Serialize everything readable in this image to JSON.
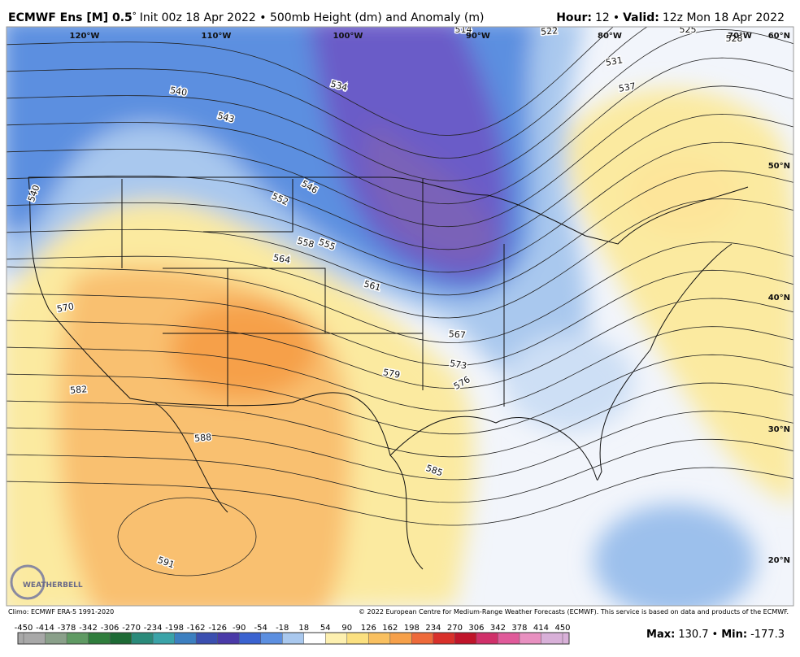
{
  "header": {
    "title": "ECMWF Ens [M] 0.5",
    "degree": "°",
    "subtitle": "Init 00z 18 Apr 2022 • 500mb Height (dm) and Anomaly (m)",
    "hour_label": "Hour:",
    "hour": "12",
    "sep": "•",
    "valid_label": "Valid:",
    "valid": "12z Mon 18 Apr 2022"
  },
  "map": {
    "lon_labels": [
      "120°W",
      "110°W",
      "100°W",
      "90°W",
      "80°W",
      "70°W"
    ],
    "lat_labels": [
      "60°N",
      "50°N",
      "40°N",
      "30°N",
      "20°N"
    ],
    "contour_labels": [
      "514",
      "522",
      "525",
      "528",
      "531",
      "537",
      "534",
      "540",
      "543",
      "546",
      "552",
      "555",
      "558",
      "561",
      "564",
      "567",
      "570",
      "573",
      "576",
      "579",
      "582",
      "585",
      "588",
      "591",
      "540"
    ],
    "logo": "WEATHERBELL"
  },
  "footer": {
    "climo": "Climo: ECMWF ERA-5 1991-2020",
    "copyright": "© 2022 European Centre for Medium-Range Weather Forecasts (ECMWF). This service is based on data and products of the ECMWF."
  },
  "colorbar": {
    "ticks": [
      -450,
      -414,
      -378,
      -342,
      -306,
      -270,
      -234,
      -198,
      -162,
      -126,
      -90,
      -54,
      -18,
      18,
      54,
      90,
      126,
      162,
      198,
      234,
      270,
      306,
      342,
      378,
      414,
      450
    ],
    "colors": [
      "#a8a8a8",
      "#8aa08a",
      "#5f9a63",
      "#2f7d3c",
      "#1d6a35",
      "#2a8a7a",
      "#3aa3a8",
      "#3c7fc0",
      "#3b4fb0",
      "#4a3aa8",
      "#3a62d0",
      "#5c8fe0",
      "#a9c8ee",
      "#ffffff",
      "#fdf0b0",
      "#fbe080",
      "#f9c060",
      "#f6a04a",
      "#ee6a3a",
      "#d8302a",
      "#c0142a",
      "#d0306a",
      "#e05a9a",
      "#e890c0",
      "#d8b0d8"
    ],
    "max_label": "Max:",
    "max": "130.7",
    "sep": "•",
    "min_label": "Min:",
    "min": "-177.3"
  }
}
